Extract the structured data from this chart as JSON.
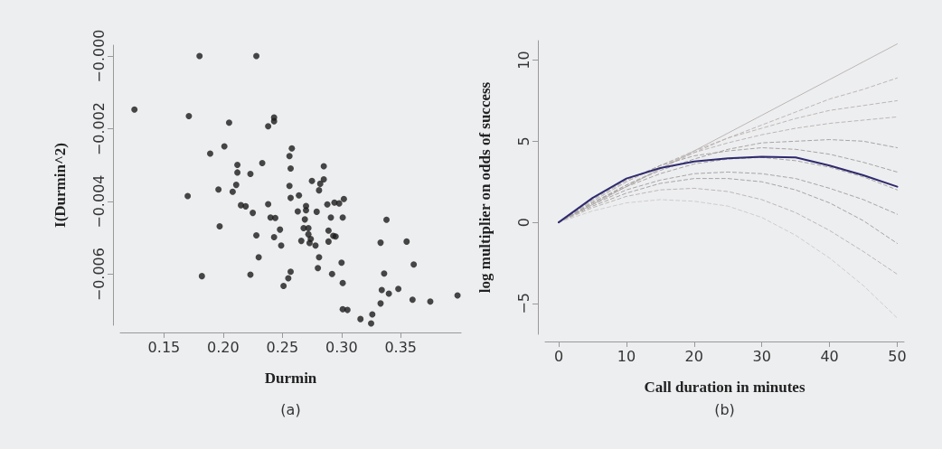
{
  "chart_data": [
    {
      "type": "scatter",
      "xlabel": "Durmin",
      "ylabel": "I(Durmin^2)",
      "annotations": [
        "(a)"
      ],
      "marker": "circle",
      "color": "#1a1a1a",
      "xlim": [
        0.113,
        0.401
      ],
      "ylim": [
        -0.0074,
        0.0003
      ],
      "xticks": [
        0.15,
        {
          "value": 0.2,
          "label": "0.20"
        },
        0.25,
        {
          "value": 0.3,
          "label": "0.30"
        },
        0.35
      ],
      "yticks": [
        {
          "value": -0.006,
          "label": "−0.006"
        },
        {
          "value": -0.004,
          "label": "−0.004"
        },
        {
          "value": -0.002,
          "label": "−0.002"
        },
        {
          "value": 0,
          "label": "−0.000"
        }
      ],
      "x": [
        0.125,
        0.18,
        0.228,
        0.171,
        0.205,
        0.243,
        0.243,
        0.238,
        0.189,
        0.201,
        0.258,
        0.256,
        0.233,
        0.212,
        0.212,
        0.223,
        0.257,
        0.285,
        0.275,
        0.285,
        0.282,
        0.281,
        0.211,
        0.196,
        0.208,
        0.256,
        0.264,
        0.257,
        0.17,
        0.215,
        0.219,
        0.238,
        0.225,
        0.27,
        0.27,
        0.263,
        0.279,
        0.288,
        0.294,
        0.298,
        0.302,
        0.24,
        0.244,
        0.269,
        0.291,
        0.301,
        0.197,
        0.248,
        0.268,
        0.272,
        0.272,
        0.289,
        0.293,
        0.295,
        0.228,
        0.243,
        0.274,
        0.266,
        0.273,
        0.278,
        0.289,
        0.249,
        0.23,
        0.281,
        0.28,
        0.3,
        0.257,
        0.255,
        0.251,
        0.223,
        0.292,
        0.182,
        0.301,
        0.301,
        0.305,
        0.316,
        0.325,
        0.333,
        0.326,
        0.338,
        0.333,
        0.355,
        0.361,
        0.336,
        0.334,
        0.34,
        0.348,
        0.36,
        0.375,
        0.398
      ],
      "values": [
        -0.00147,
        0,
        0,
        -0.00165,
        -0.00183,
        -0.00169,
        -0.00179,
        -0.00193,
        -0.00268,
        -0.00248,
        -0.00254,
        -0.00275,
        -0.00294,
        -0.00299,
        -0.0032,
        -0.00324,
        -0.00309,
        -0.00303,
        -0.00343,
        -0.00339,
        -0.00351,
        -0.00369,
        -0.00354,
        -0.00367,
        -0.00373,
        -0.00357,
        -0.00383,
        -0.0039,
        -0.00385,
        -0.0041,
        -0.00413,
        -0.00407,
        -0.00431,
        -0.00412,
        -0.00424,
        -0.00427,
        -0.00428,
        -0.00408,
        -0.00403,
        -0.00405,
        -0.00393,
        -0.00444,
        -0.00445,
        -0.00449,
        -0.00444,
        -0.00444,
        -0.00468,
        -0.00477,
        -0.00473,
        -0.00473,
        -0.0049,
        -0.0048,
        -0.00494,
        -0.00496,
        -0.00493,
        -0.00498,
        -0.00503,
        -0.00508,
        -0.00514,
        -0.00521,
        -0.0051,
        -0.00521,
        -0.00553,
        -0.00553,
        -0.00583,
        -0.00568,
        -0.00593,
        -0.00611,
        -0.00632,
        -0.00601,
        -0.00599,
        -0.00605,
        -0.00624,
        -0.00696,
        -0.00698,
        -0.00723,
        -0.00735,
        -0.0068,
        -0.0071,
        -0.0045,
        -0.00513,
        -0.0051,
        -0.00573,
        -0.00598,
        -0.00643,
        -0.00653,
        -0.0064,
        -0.0067,
        -0.00675,
        -0.00658
      ]
    },
    {
      "type": "line",
      "xlabel": "Call duration in minutes",
      "ylabel": "log multiplier on odds of success",
      "annotations": [
        "(b)"
      ],
      "marker": "none",
      "xlim": [
        -2,
        51
      ],
      "ylim": [
        -6.9,
        11.2
      ],
      "xticks": [
        0,
        10,
        20,
        30,
        40,
        50
      ],
      "yticks": [
        {
          "value": -5,
          "label": "−5"
        },
        0,
        5,
        10
      ],
      "x": [
        0,
        5,
        10,
        15,
        20,
        25,
        30,
        35,
        40,
        45,
        50
      ],
      "series": [
        {
          "color": "#bdb6b4",
          "line_style": "solid",
          "values": [
            0,
            1.1,
            2.2,
            3.3,
            4.4,
            5.5,
            6.6,
            7.7,
            8.8,
            9.9,
            11
          ]
        },
        {
          "color": "#bdb6b4",
          "line_style": "dashed",
          "values": [
            0,
            1.2,
            2.3,
            3.3,
            4.3,
            5.2,
            6.0,
            6.8,
            7.6,
            8.2,
            8.9
          ]
        },
        {
          "color": "#bdb6b4",
          "line_style": "dashed",
          "values": [
            0,
            1.3,
            2.5,
            3.5,
            4.4,
            5.2,
            5.8,
            6.4,
            6.9,
            7.2,
            7.5
          ]
        },
        {
          "color": "#bdb6b4",
          "line_style": "dashed",
          "values": [
            0,
            1.3,
            2.5,
            3.5,
            4.3,
            4.9,
            5.4,
            5.8,
            6.1,
            6.3,
            6.5
          ]
        },
        {
          "color": "#a8a4a3",
          "line_style": "dashed",
          "values": [
            0,
            1.2,
            2.3,
            3.2,
            3.9,
            4.5,
            4.9,
            5.0,
            5.1,
            5.0,
            4.6
          ]
        },
        {
          "color": "#a8a4a3",
          "line_style": "dashed",
          "values": [
            0,
            1.4,
            2.6,
            3.5,
            4.1,
            4.4,
            4.6,
            4.5,
            4.2,
            3.7,
            3.1
          ]
        },
        {
          "color": "#a8a4a3",
          "line_style": "dashed",
          "values": [
            0,
            1.2,
            2.2,
            3.0,
            3.6,
            3.9,
            4.0,
            3.8,
            3.4,
            2.8,
            2.0
          ]
        },
        {
          "color": "#a8a4a3",
          "line_style": "dashed",
          "values": [
            0,
            1.1,
            2.0,
            2.6,
            3.0,
            3.1,
            3.0,
            2.7,
            2.1,
            1.4,
            0.5
          ]
        },
        {
          "color": "#a8a4a3",
          "line_style": "dashed",
          "values": [
            0,
            1.0,
            1.8,
            2.4,
            2.7,
            2.7,
            2.5,
            2.0,
            1.2,
            0.1,
            -1.3
          ]
        },
        {
          "color": "#bdb6b4",
          "line_style": "dashed",
          "values": [
            0,
            0.9,
            1.6,
            2.0,
            2.1,
            1.9,
            1.4,
            0.6,
            -0.5,
            -1.8,
            -3.2
          ]
        },
        {
          "color": "#d0cccb",
          "line_style": "dashed",
          "values": [
            0,
            0.7,
            1.2,
            1.4,
            1.3,
            1.0,
            0.3,
            -0.8,
            -2.2,
            -3.9,
            -5.9
          ]
        },
        {
          "color": "#2e2a6e",
          "line_style": "solid",
          "values": [
            0,
            1.5,
            2.7,
            3.35,
            3.75,
            3.95,
            4.05,
            4.0,
            3.5,
            2.9,
            2.2
          ]
        }
      ]
    }
  ]
}
